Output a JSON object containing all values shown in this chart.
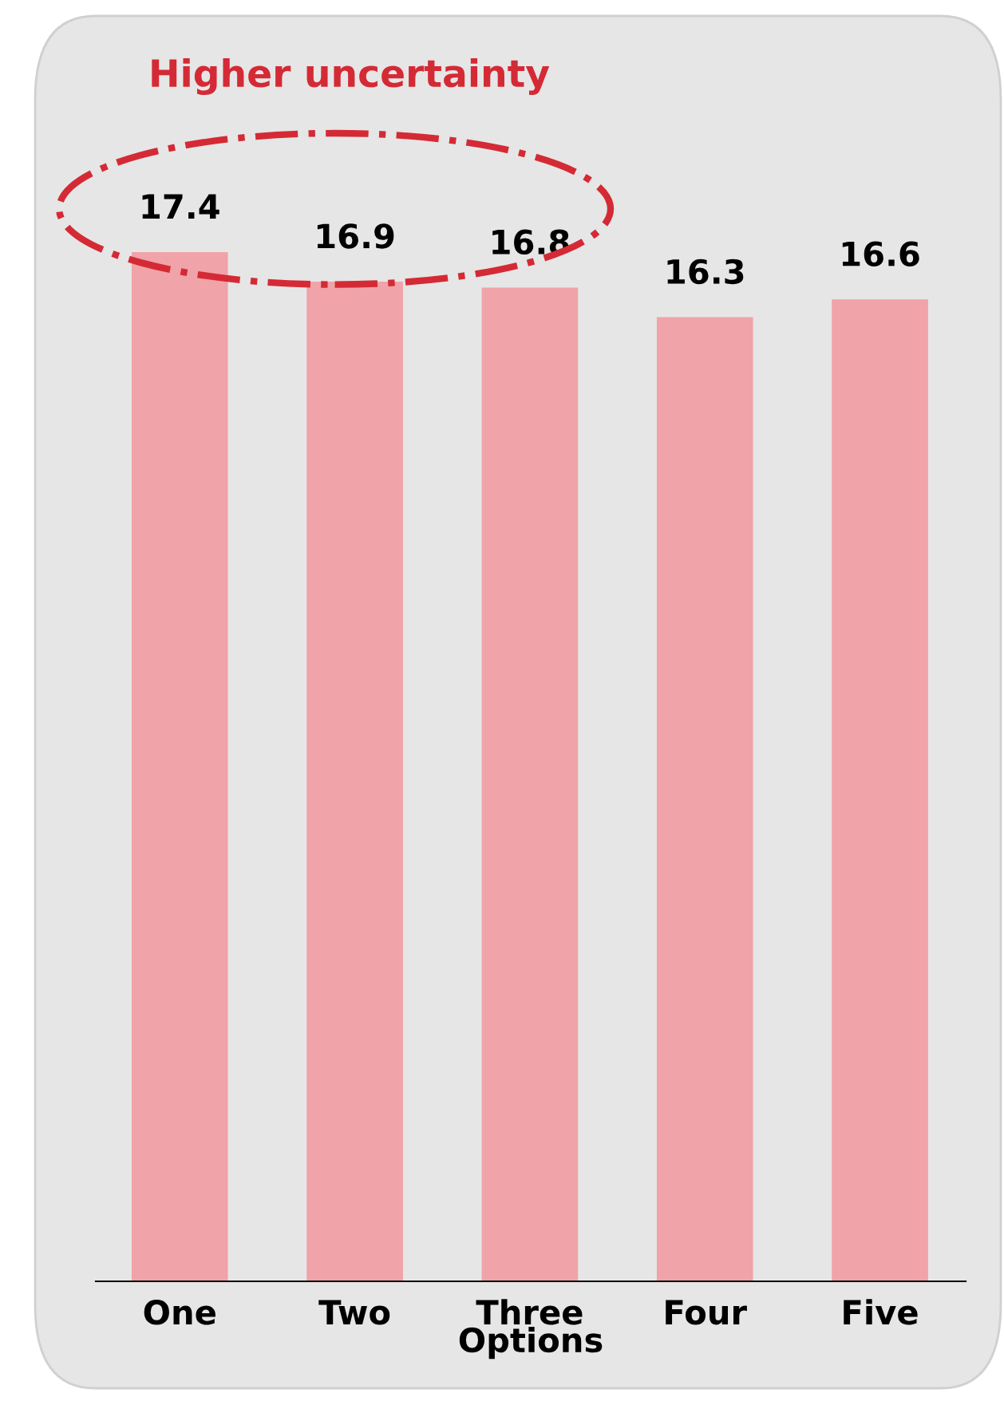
{
  "chart_data": {
    "type": "bar",
    "categories": [
      "One",
      "Two",
      "Three",
      "Four",
      "Five"
    ],
    "values": [
      17.4,
      16.9,
      16.8,
      16.3,
      16.6
    ],
    "color": "#f0a3a8",
    "xlabel": "Options",
    "data_labels": true,
    "grid": false,
    "legend": false,
    "annotations": [
      "Higher uncertainty"
    ]
  }
}
